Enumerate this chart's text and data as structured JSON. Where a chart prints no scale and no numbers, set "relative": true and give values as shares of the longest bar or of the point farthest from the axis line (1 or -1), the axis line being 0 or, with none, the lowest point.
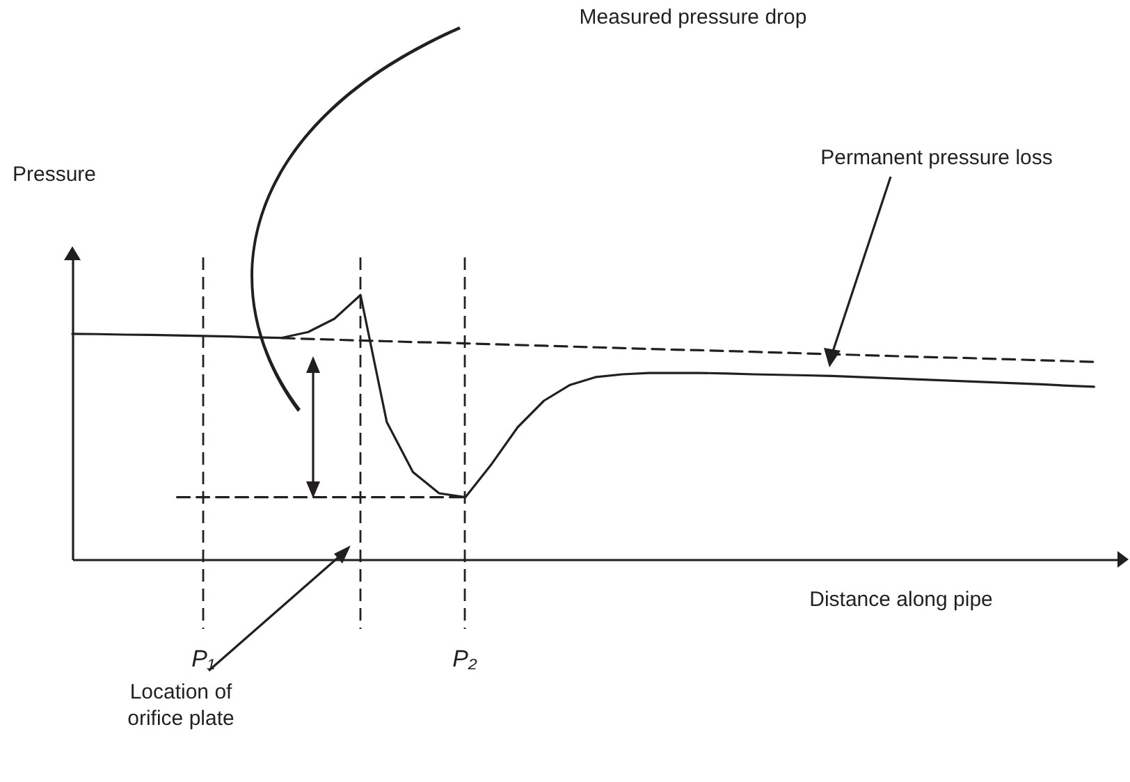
{
  "chart_data": {
    "type": "line",
    "xlabel": "Distance along pipe",
    "relative": true,
    "categories": [
      null,
      null,
      null,
      null,
      null,
      null,
      null,
      null,
      null,
      null,
      null,
      null,
      null,
      null,
      null,
      null,
      null,
      null,
      null,
      null,
      null,
      null,
      null,
      null,
      null,
      null,
      null,
      null,
      null,
      null,
      null,
      null,
      null,
      null,
      null,
      null,
      null,
      null,
      null,
      null,
      null
    ],
    "series": [
      {
        "color": "#231f20",
        "line_style": "solid",
        "values": [
          0.853,
          0.852,
          0.85,
          0.849,
          0.847,
          0.845,
          0.843,
          0.84,
          0.838,
          0.86,
          0.91,
          1.0,
          0.52,
          0.33,
          0.25,
          0.235,
          0.36,
          0.5,
          0.6,
          0.66,
          0.69,
          0.7,
          0.705,
          0.705,
          0.705,
          0.703,
          0.7,
          0.698,
          0.696,
          0.694,
          0.69,
          0.686,
          0.682,
          0.678,
          0.674,
          0.67,
          0.666,
          0.662,
          0.657,
          0.653,
          null
        ]
      },
      {
        "color": "#231f20",
        "line_style": "dashed",
        "values": [
          null,
          null,
          null,
          null,
          null,
          null,
          null,
          null,
          0.837,
          0.834,
          0.831,
          0.828,
          0.825,
          0.822,
          0.82,
          0.817,
          0.814,
          0.811,
          0.808,
          0.805,
          0.802,
          0.799,
          0.796,
          0.793,
          0.791,
          0.788,
          0.785,
          0.782,
          0.779,
          0.776,
          0.773,
          0.77,
          0.767,
          0.764,
          0.762,
          0.759,
          0.756,
          0.753,
          0.75,
          0.747,
          null
        ]
      },
      {
        "color": "#231f20",
        "line_style": "dashed",
        "values": [
          null,
          null,
          null,
          null,
          0.235,
          0.235,
          0.235,
          0.235,
          0.235,
          0.235,
          0.235,
          0.235,
          0.235,
          0.235,
          0.235,
          0.235,
          null,
          null,
          null,
          null,
          null,
          null,
          null,
          null,
          null,
          null,
          null,
          null,
          null,
          null,
          null,
          null,
          null,
          null,
          null,
          null,
          null,
          null,
          null,
          null,
          null
        ]
      }
    ],
    "annotations": [
      "Measured pressure drop",
      "Permanent pressure loss",
      "Location of orifice plate",
      "P₁",
      "P₂",
      "Pressure"
    ]
  }
}
